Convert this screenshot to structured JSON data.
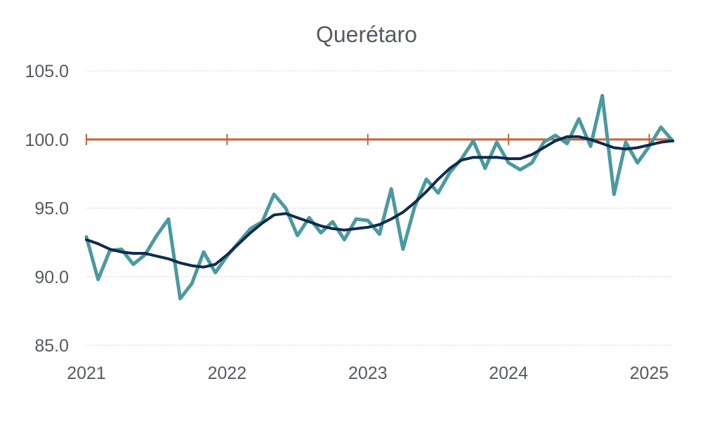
{
  "chart_data": {
    "type": "line",
    "title": "Querétaro",
    "xlabel": "",
    "ylabel": "",
    "ylim": [
      85,
      105
    ],
    "yticks": [
      "105.0",
      "100.0",
      "95.0",
      "90.0",
      "85.0"
    ],
    "xticks": [
      "2021",
      "2022",
      "2023",
      "2024",
      "2025"
    ],
    "grid": true,
    "legend": "none",
    "colors": {
      "series_1": "#4a9a9f",
      "series_2": "#0f2a4d",
      "reference": "#c9623c",
      "grid": "#c8c8c8",
      "text": "#555a62"
    },
    "x": [
      "2021-01",
      "2021-02",
      "2021-03",
      "2021-04",
      "2021-05",
      "2021-06",
      "2021-07",
      "2021-08",
      "2021-09",
      "2021-10",
      "2021-11",
      "2021-12",
      "2022-01",
      "2022-02",
      "2022-03",
      "2022-04",
      "2022-05",
      "2022-06",
      "2022-07",
      "2022-08",
      "2022-09",
      "2022-10",
      "2022-11",
      "2022-12",
      "2023-01",
      "2023-02",
      "2023-03",
      "2023-04",
      "2023-05",
      "2023-06",
      "2023-07",
      "2023-08",
      "2023-09",
      "2023-10",
      "2023-11",
      "2023-12",
      "2024-01",
      "2024-02",
      "2024-03",
      "2024-04",
      "2024-05",
      "2024-06",
      "2024-07",
      "2024-08",
      "2024-09",
      "2024-10",
      "2024-11",
      "2024-12",
      "2025-01",
      "2025-02",
      "2025-03"
    ],
    "series": [
      {
        "values": [
          92.9,
          89.8,
          91.9,
          92.0,
          90.9,
          91.6,
          93.0,
          94.2,
          88.4,
          89.5,
          91.8,
          90.3,
          91.5,
          92.5,
          93.5,
          94.0,
          96.0,
          95.0,
          93.0,
          94.3,
          93.2,
          94.0,
          92.7,
          94.2,
          94.1,
          93.1,
          96.4,
          92.0,
          95.1,
          97.1,
          96.1,
          97.6,
          98.6,
          99.9,
          97.9,
          99.8,
          98.3,
          97.8,
          98.3,
          99.8,
          100.3,
          99.7,
          101.5,
          99.5,
          103.2,
          96.0,
          99.8,
          98.3,
          99.5,
          100.9,
          99.9
        ]
      },
      {
        "values": [
          92.7,
          92.4,
          92.0,
          91.8,
          91.7,
          91.7,
          91.5,
          91.3,
          91.0,
          90.8,
          90.7,
          90.9,
          91.6,
          92.4,
          93.2,
          93.9,
          94.5,
          94.6,
          94.3,
          94.0,
          93.7,
          93.5,
          93.4,
          93.5,
          93.6,
          93.8,
          94.2,
          94.7,
          95.4,
          96.2,
          97.1,
          97.9,
          98.5,
          98.7,
          98.7,
          98.7,
          98.6,
          98.6,
          98.9,
          99.4,
          99.9,
          100.2,
          100.2,
          100.0,
          99.7,
          99.4,
          99.3,
          99.4,
          99.6,
          99.8,
          99.9
        ]
      }
    ],
    "reference_line": {
      "value": 100,
      "tick_marks": [
        "2021-01",
        "2022-01",
        "2023-01",
        "2024-01",
        "2025-01"
      ]
    }
  }
}
